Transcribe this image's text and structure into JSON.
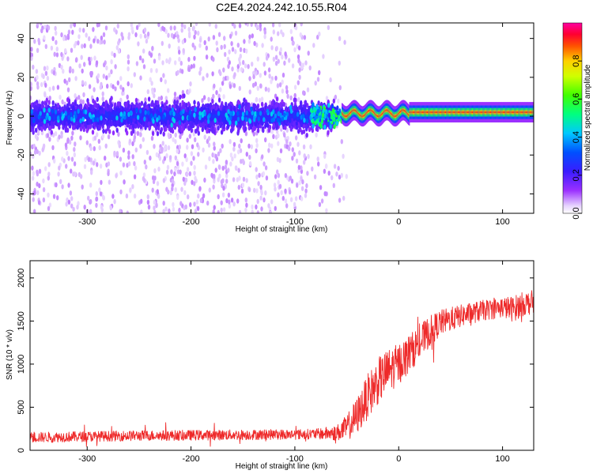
{
  "title": "C2E4.2024.242.10.55.R04",
  "chart_data": [
    {
      "type": "heatmap",
      "xlabel": "Height of straight line (km)",
      "ylabel": "Frequency (Hz)",
      "xlim": [
        -355,
        130
      ],
      "ylim": [
        -50,
        48
      ],
      "xticks": [
        -300,
        -200,
        -100,
        0,
        100
      ],
      "yticks": [
        -40,
        -20,
        0,
        20,
        40
      ],
      "grid": false,
      "colorbar": {
        "label": "Normalized spectral amplitude",
        "range": [
          0,
          1
        ],
        "ticks": [
          0.0,
          0.2,
          0.4,
          0.6,
          0.8
        ],
        "colormap": "rainbow (violet-blue-cyan-green-yellow-red-magenta)"
      },
      "features": {
        "noise_band_center_hz": 0,
        "noise_band_halfwidth_hz": 10,
        "noise_extent_km": [
          -355,
          -60
        ],
        "faint_scatter_extent_km": [
          -355,
          -50
        ],
        "carrier_line_start_km": -55,
        "carrier_line_frequency_hz": 2,
        "carrier_peak_amplitude": 0.9
      }
    },
    {
      "type": "line",
      "xlabel": "Height of straight line (km)",
      "ylabel": "SNR (10 * v/v)",
      "xlim": [
        -355,
        130
      ],
      "ylim": [
        0,
        2200
      ],
      "xticks": [
        -300,
        -200,
        -100,
        0,
        100
      ],
      "yticks": [
        0,
        500,
        1000,
        1500,
        2000
      ],
      "grid": false,
      "series": [
        {
          "color": "#ee2a2a",
          "x": [
            -355,
            -300,
            -250,
            -200,
            -150,
            -100,
            -80,
            -60,
            -50,
            -40,
            -30,
            -20,
            -10,
            0,
            10,
            20,
            30,
            40,
            60,
            80,
            100,
            110,
            120,
            130
          ],
          "y": [
            150,
            160,
            170,
            175,
            180,
            185,
            190,
            200,
            260,
            400,
            620,
            800,
            920,
            1000,
            1120,
            1250,
            1380,
            1480,
            1560,
            1620,
            1660,
            1640,
            1700,
            1720
          ],
          "noise_amplitude": [
            60,
            60,
            60,
            60,
            60,
            60,
            60,
            90,
            150,
            220,
            260,
            270,
            260,
            240,
            220,
            200,
            180,
            150,
            130,
            120,
            120,
            150,
            140,
            140
          ]
        }
      ]
    }
  ]
}
